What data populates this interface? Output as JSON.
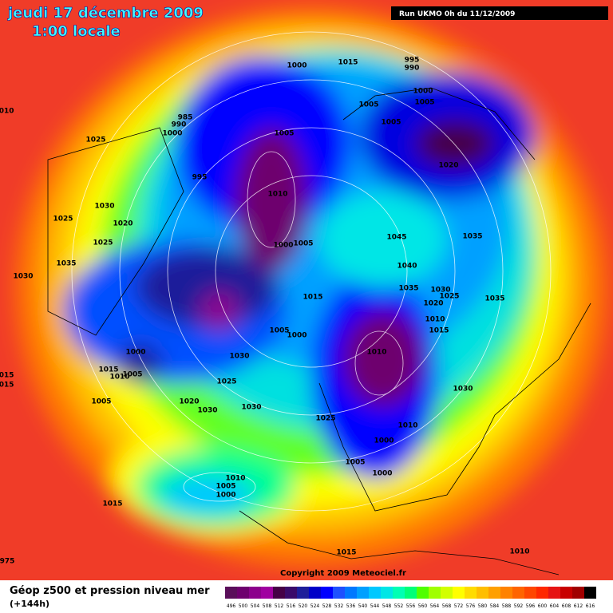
{
  "header": {
    "title": "jeudi 17 décembre 2009",
    "subtitle": "1:00 locale",
    "run": "Run UKMO 0h du 11/12/2009"
  },
  "copyright": "Copyright 2009 Meteociel.fr",
  "legend": {
    "title": "Géop z500 et pression niveau mer",
    "lead": "(+144h)",
    "values": [
      496,
      500,
      504,
      508,
      512,
      516,
      520,
      524,
      528,
      532,
      536,
      540,
      544,
      548,
      552,
      556,
      560,
      564,
      568,
      572,
      576,
      580,
      584,
      588,
      592,
      596,
      600,
      604,
      608,
      612,
      616
    ],
    "colors": [
      "#5a0f5a",
      "#6e006e",
      "#8c008c",
      "#a000a0",
      "#460046",
      "#3a0a6a",
      "#1e1e9a",
      "#0000c8",
      "#0000ff",
      "#1e50ff",
      "#0078ff",
      "#00a0ff",
      "#00c8ff",
      "#00e6e6",
      "#00ffb4",
      "#00ff78",
      "#50ff00",
      "#a0ff00",
      "#d2ff00",
      "#ffff00",
      "#ffdc00",
      "#ffbe00",
      "#ffa000",
      "#ff8200",
      "#ff6400",
      "#ff4600",
      "#ff2800",
      "#e61414",
      "#c80000",
      "#a00000",
      "#000000"
    ]
  },
  "isobar_labels": [
    1000,
    1015,
    995,
    990,
    1000,
    1005,
    1005,
    1005,
    985,
    990,
    1000,
    1025,
    1005,
    1020,
    995,
    1030,
    1010,
    1025,
    1020,
    1045,
    1035,
    1025,
    1000,
    1005,
    1035,
    1040,
    1030,
    1035,
    1030,
    1025,
    1020,
    1035,
    1015,
    1010,
    1015,
    1005,
    1000,
    1010,
    1000,
    1030,
    1015,
    1005,
    1010,
    1025,
    1030,
    1005,
    1020,
    1030,
    1030,
    1025,
    1010,
    1000,
    1005,
    1000,
    1010,
    1005,
    1000,
    1015,
    1015,
    1010,
    975,
    1015,
    1015,
    1010
  ]
}
